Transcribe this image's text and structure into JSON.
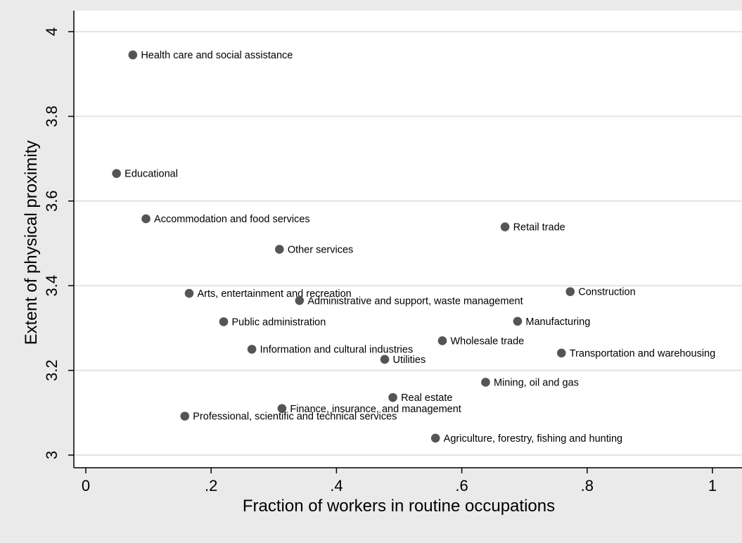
{
  "chart_data": {
    "type": "scatter",
    "title": "",
    "xlabel": "Fraction of workers in routine occupations",
    "ylabel": "Extent of physical proximity",
    "xlim": [
      0,
      1
    ],
    "ylim": [
      3,
      4
    ],
    "x_ticks": [
      0,
      0.2,
      0.4,
      0.6,
      0.8,
      1
    ],
    "x_tick_labels": [
      "0",
      ".2",
      ".4",
      ".6",
      ".8",
      "1"
    ],
    "y_ticks": [
      3,
      3.2,
      3.4,
      3.6,
      3.8,
      4
    ],
    "y_tick_labels": [
      "3",
      "3.2",
      "3.4",
      "3.6",
      "3.8",
      "4"
    ],
    "grid": "horizontal",
    "colors": {
      "background": "#eaeaea",
      "plot_area": "#ffffff",
      "marker": "#555555",
      "grid": "#e4e4e4"
    },
    "points": [
      {
        "label": "Health care and social assistance",
        "x": 0.075,
        "y": 3.945
      },
      {
        "label": "Educational",
        "x": 0.049,
        "y": 3.665
      },
      {
        "label": "Accommodation and food services",
        "x": 0.096,
        "y": 3.558
      },
      {
        "label": "Other services",
        "x": 0.309,
        "y": 3.486
      },
      {
        "label": "Retail trade",
        "x": 0.669,
        "y": 3.539
      },
      {
        "label": "Arts, entertainment and recreation",
        "x": 0.165,
        "y": 3.382
      },
      {
        "label": "Administrative and support, waste management",
        "x": 0.341,
        "y": 3.365
      },
      {
        "label": "Construction",
        "x": 0.773,
        "y": 3.386
      },
      {
        "label": "Public administration",
        "x": 0.22,
        "y": 3.315
      },
      {
        "label": "Manufacturing",
        "x": 0.689,
        "y": 3.316
      },
      {
        "label": "Information and cultural industries",
        "x": 0.265,
        "y": 3.25
      },
      {
        "label": "Wholesale trade",
        "x": 0.569,
        "y": 3.27
      },
      {
        "label": "Utilities",
        "x": 0.477,
        "y": 3.226
      },
      {
        "label": "Transportation and warehousing",
        "x": 0.759,
        "y": 3.241
      },
      {
        "label": "Mining, oil and gas",
        "x": 0.638,
        "y": 3.172
      },
      {
        "label": "Real estate",
        "x": 0.49,
        "y": 3.136
      },
      {
        "label": "Finance, insurance, and management",
        "x": 0.313,
        "y": 3.11
      },
      {
        "label": "Professional, scientific and technical services",
        "x": 0.158,
        "y": 3.092
      },
      {
        "label": "Agriculture, forestry, fishing and hunting",
        "x": 0.558,
        "y": 3.04
      }
    ]
  }
}
